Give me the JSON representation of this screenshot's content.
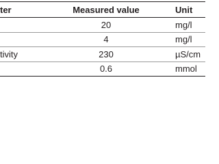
{
  "table": {
    "header": [
      "ter",
      "Measured value",
      "Unit"
    ],
    "rows": [
      [
        null,
        "20",
        "mg/l"
      ],
      [
        null,
        "4",
        "mg/l"
      ],
      [
        "tivity",
        "230",
        "µS/cm"
      ],
      [
        null,
        "0.6",
        "mmol"
      ]
    ]
  }
}
